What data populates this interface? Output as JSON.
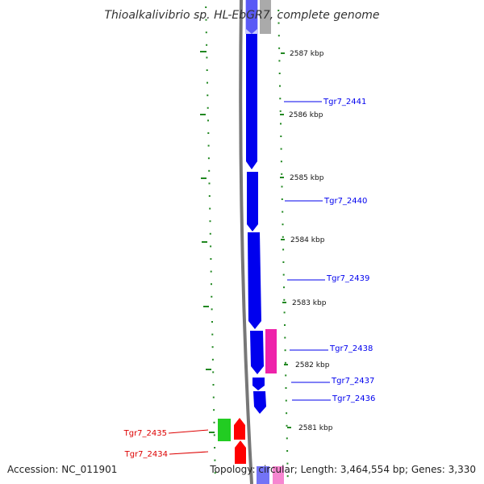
{
  "title": "Thioalkalivibrio sp. HL-EbGR7, complete genome",
  "footer": {
    "accession": "Accession: NC_011901",
    "summary": "Topology: circular; Length: 3,464,554 bp; Genes: 3,330"
  },
  "ticks": [
    {
      "label": "2587 kbp",
      "kbp": 2587
    },
    {
      "label": "2586 kbp",
      "kbp": 2586
    },
    {
      "label": "2585 kbp",
      "kbp": 2585
    },
    {
      "label": "2584 kbp",
      "kbp": 2584
    },
    {
      "label": "2583 kbp",
      "kbp": 2583
    },
    {
      "label": "2582 kbp",
      "kbp": 2582
    },
    {
      "label": "2581 kbp",
      "kbp": 2581
    }
  ],
  "genes": [
    {
      "name": "Tgr7_2441",
      "color": "#0000ee"
    },
    {
      "name": "Tgr7_2440",
      "color": "#0000ee"
    },
    {
      "name": "Tgr7_2439",
      "color": "#0000ee"
    },
    {
      "name": "Tgr7_2438",
      "color": "#0000ee"
    },
    {
      "name": "Tgr7_2437",
      "color": "#0000ee"
    },
    {
      "name": "Tgr7_2436",
      "color": "#0000ee"
    },
    {
      "name": "Tgr7_2435",
      "color": "#dd0000"
    },
    {
      "name": "Tgr7_2434",
      "color": "#dd0000"
    }
  ],
  "colors": {
    "forward_cds": "#0000ee",
    "reverse_cds": "#ff0000",
    "rna": "#ee22aa",
    "other": "#22cc22",
    "backbone": "#888888",
    "gc_skew": "#228822"
  }
}
